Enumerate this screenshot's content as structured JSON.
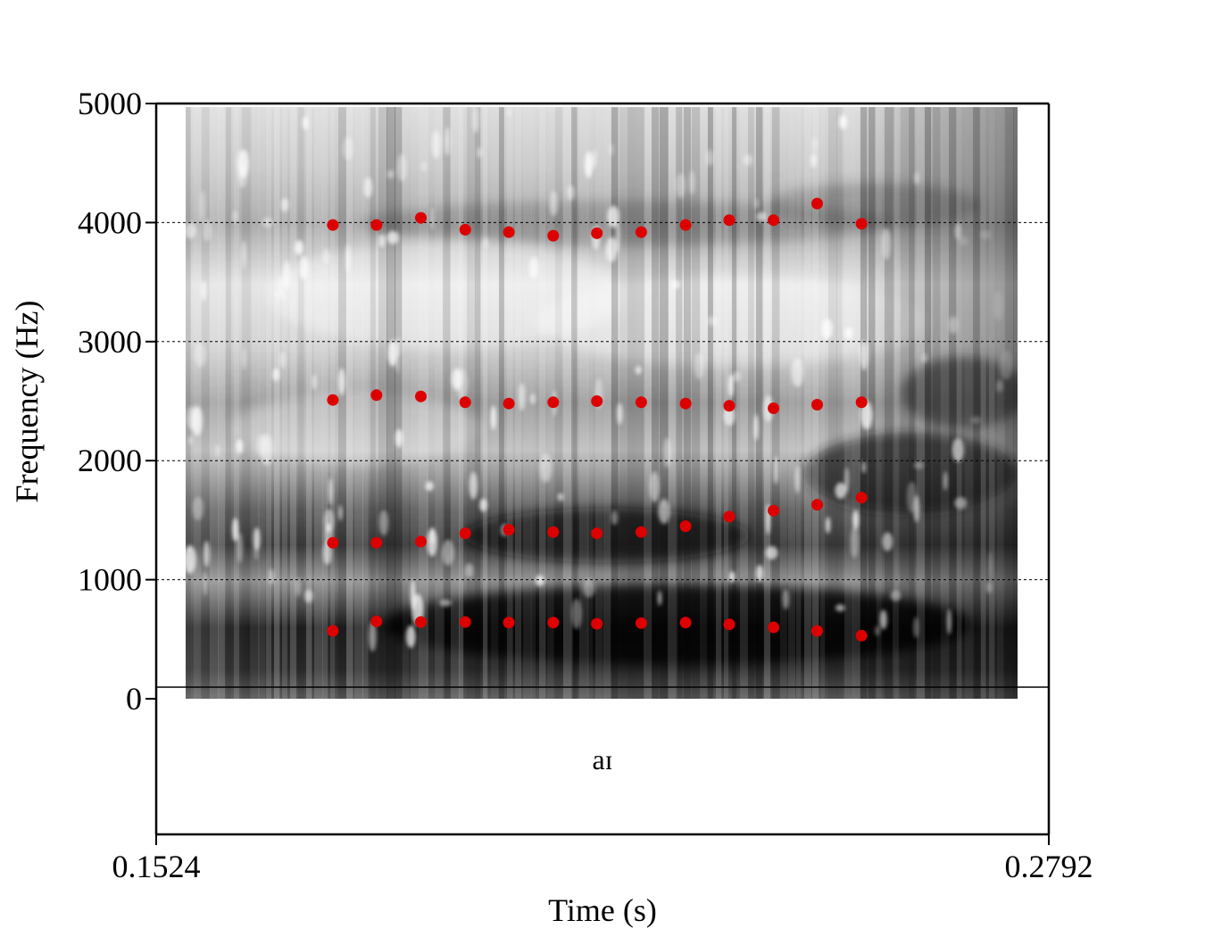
{
  "chart_data": {
    "type": "scatter",
    "title": "",
    "xlabel": "Time (s)",
    "ylabel": "Frequency (Hz)",
    "xlim": [
      0.1524,
      0.2792
    ],
    "ylim": [
      0,
      5000
    ],
    "x_tick_labels": [
      "0.1524",
      "0.2792"
    ],
    "y_ticks": [
      0,
      1000,
      2000,
      3000,
      4000,
      5000
    ],
    "y_tick_labels": [
      "0",
      "1000",
      "2000",
      "3000",
      "4000",
      "5000"
    ],
    "grid": "dotted horizontal lines at 1000, 2000, 3000, 4000",
    "background": "grayscale spectrogram",
    "interval_label": "aɪ",
    "marker_color": "#dd0000",
    "x": [
      0.1775,
      0.1837,
      0.19,
      0.1963,
      0.2025,
      0.2088,
      0.215,
      0.2213,
      0.2276,
      0.2338,
      0.2401,
      0.2463,
      0.2526
    ],
    "series": [
      {
        "values": [
          570,
          650,
          645,
          645,
          640,
          640,
          630,
          635,
          640,
          625,
          600,
          570,
          530
        ]
      },
      {
        "values": [
          1310,
          1310,
          1320,
          1390,
          1420,
          1400,
          1390,
          1400,
          1450,
          1530,
          1580,
          1630,
          1690
        ]
      },
      {
        "values": [
          2510,
          2550,
          2540,
          2490,
          2480,
          2490,
          2500,
          2490,
          2480,
          2460,
          2440,
          2470,
          2490
        ]
      },
      {
        "values": [
          3980,
          3980,
          4040,
          3940,
          3920,
          3890,
          3910,
          3920,
          3980,
          4020,
          4020,
          4160,
          3990
        ]
      }
    ]
  }
}
